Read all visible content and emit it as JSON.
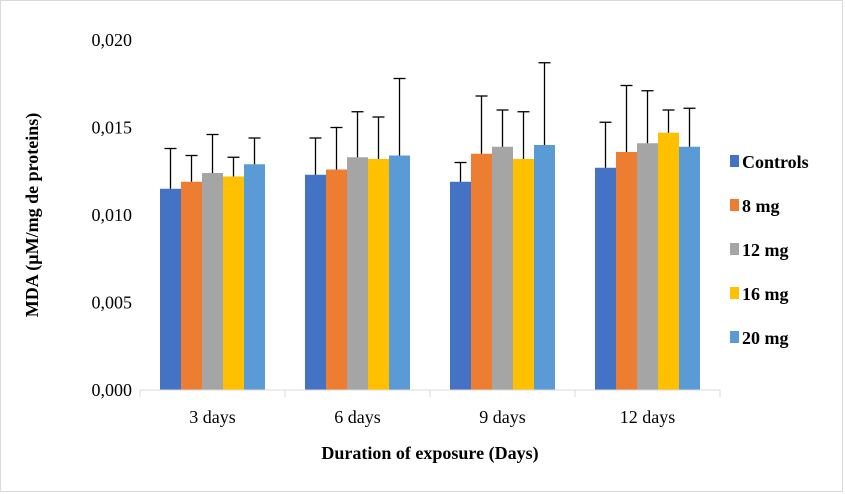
{
  "chart_data": {
    "type": "bar",
    "title": "",
    "xlabel": "Duration of exposure (Days)",
    "ylabel": "MDA (µM/mg de proteins)",
    "ylim": [
      0,
      0.02
    ],
    "yticks": [
      "0,000",
      "0,005",
      "0,010",
      "0,015",
      "0,020"
    ],
    "categories": [
      "3 days",
      "6 days",
      "9 days",
      "12 days"
    ],
    "series": [
      {
        "name": "Controls",
        "color": "#4472C4",
        "values": [
          0.0115,
          0.0123,
          0.0119,
          0.0127
        ],
        "errors": [
          0.0023,
          0.0021,
          0.0011,
          0.0026
        ]
      },
      {
        "name": "8 mg",
        "color": "#ED7D31",
        "values": [
          0.0119,
          0.0126,
          0.0135,
          0.0136
        ],
        "errors": [
          0.0015,
          0.0024,
          0.0033,
          0.0038
        ]
      },
      {
        "name": "12 mg",
        "color": "#A5A5A5",
        "values": [
          0.0124,
          0.0133,
          0.0139,
          0.0141
        ],
        "errors": [
          0.0022,
          0.0026,
          0.0021,
          0.003
        ]
      },
      {
        "name": "16 mg",
        "color": "#FFC000",
        "values": [
          0.0122,
          0.0132,
          0.0132,
          0.0147
        ],
        "errors": [
          0.0011,
          0.0024,
          0.0027,
          0.0013
        ]
      },
      {
        "name": "20 mg",
        "color": "#5B9BD5",
        "values": [
          0.0129,
          0.0134,
          0.014,
          0.0139
        ],
        "errors": [
          0.0015,
          0.0044,
          0.0047,
          0.0022
        ]
      }
    ],
    "grid": false,
    "error_bars": true,
    "legend_position": "right"
  }
}
